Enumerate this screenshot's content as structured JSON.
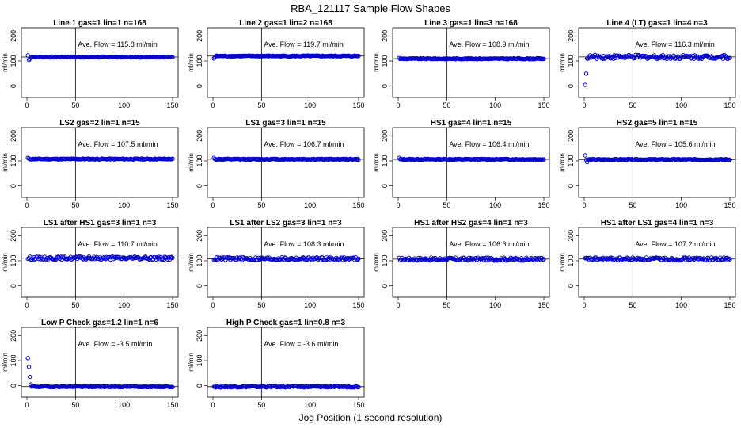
{
  "figure": {
    "title": "RBA_121117  Sample Flow Shapes",
    "xlabel": "Jog Position (1 second resolution)"
  },
  "chart_data": [
    {
      "type": "scatter",
      "title": "Line 1 gas=1 lin=1 n=168",
      "ylabel": "ml/min",
      "annotation": "Ave. Flow = 115.8  ml/min",
      "avg": 115.8,
      "xlim": [
        0,
        150
      ],
      "ylim": [
        0,
        200
      ],
      "xticks": [
        0,
        50,
        100,
        150
      ],
      "yticks": [
        0,
        100,
        200
      ],
      "vline": 50,
      "start": [
        122,
        104,
        108
      ],
      "noise": 2,
      "color": "#0000cc"
    },
    {
      "type": "scatter",
      "title": "Line 2 gas=1 lin=2 n=168",
      "ylabel": "ml/min",
      "annotation": "Ave. Flow = 119.7  ml/min",
      "avg": 119.7,
      "xlim": [
        0,
        150
      ],
      "ylim": [
        0,
        200
      ],
      "xticks": [
        0,
        50,
        100,
        150
      ],
      "yticks": [
        0,
        100,
        200
      ],
      "vline": 50,
      "start": [
        110,
        115
      ],
      "noise": 2,
      "color": "#0000cc"
    },
    {
      "type": "scatter",
      "title": "Line 3 gas=1 lin=3 n=168",
      "ylabel": "ml/min",
      "annotation": "Ave. Flow = 108.9  ml/min",
      "avg": 108.9,
      "xlim": [
        0,
        150
      ],
      "ylim": [
        0,
        200
      ],
      "xticks": [
        0,
        50,
        100,
        150
      ],
      "yticks": [
        0,
        100,
        200
      ],
      "vline": 50,
      "start": [
        112
      ],
      "noise": 2,
      "color": "#0000cc"
    },
    {
      "type": "scatter",
      "title": "Line 4 (LT) gas=1 lin=4 n=3",
      "ylabel": "ml/min",
      "annotation": "Ave. Flow = 116.3  ml/min",
      "avg": 116.3,
      "xlim": [
        0,
        150
      ],
      "ylim": [
        0,
        200
      ],
      "xticks": [
        0,
        50,
        100,
        150
      ],
      "yticks": [
        0,
        100,
        200
      ],
      "vline": 50,
      "start": [
        5,
        50,
        110
      ],
      "noise": 8,
      "color": "#0000cc"
    },
    {
      "type": "scatter",
      "title": "LS2 gas=2 lin=1 n=15",
      "ylabel": "ml/min",
      "annotation": "Ave. Flow = 107.5  ml/min",
      "avg": 107.5,
      "xlim": [
        0,
        150
      ],
      "ylim": [
        0,
        200
      ],
      "xticks": [
        0,
        50,
        100,
        150
      ],
      "yticks": [
        0,
        100,
        200
      ],
      "vline": 50,
      "start": [
        112
      ],
      "noise": 2,
      "color": "#0000cc"
    },
    {
      "type": "scatter",
      "title": "LS1 gas=3 lin=1 n=15",
      "ylabel": "ml/min",
      "annotation": "Ave. Flow = 106.7  ml/min",
      "avg": 106.7,
      "xlim": [
        0,
        150
      ],
      "ylim": [
        0,
        200
      ],
      "xticks": [
        0,
        50,
        100,
        150
      ],
      "yticks": [
        0,
        100,
        200
      ],
      "vline": 50,
      "start": [
        112
      ],
      "noise": 2,
      "color": "#0000cc"
    },
    {
      "type": "scatter",
      "title": "HS1 gas=4 lin=1 n=15",
      "ylabel": "ml/min",
      "annotation": "Ave. Flow = 106.4  ml/min",
      "avg": 106.4,
      "xlim": [
        0,
        150
      ],
      "ylim": [
        0,
        200
      ],
      "xticks": [
        0,
        50,
        100,
        150
      ],
      "yticks": [
        0,
        100,
        200
      ],
      "vline": 50,
      "start": [
        112
      ],
      "noise": 2,
      "color": "#0000cc"
    },
    {
      "type": "scatter",
      "title": "HS2 gas=5 lin=1 n=15",
      "ylabel": "ml/min",
      "annotation": "Ave. Flow = 105.6  ml/min",
      "avg": 105.6,
      "xlim": [
        0,
        150
      ],
      "ylim": [
        0,
        200
      ],
      "xticks": [
        0,
        50,
        100,
        150
      ],
      "yticks": [
        0,
        100,
        200
      ],
      "vline": 50,
      "start": [
        122,
        104,
        95
      ],
      "noise": 2,
      "color": "#0000cc"
    },
    {
      "type": "scatter",
      "title": "LS1 after HS1 gas=3 lin=1 n=3",
      "ylabel": "ml/min",
      "annotation": "Ave. Flow = 110.7  ml/min",
      "avg": 110.7,
      "xlim": [
        0,
        150
      ],
      "ylim": [
        0,
        200
      ],
      "xticks": [
        0,
        50,
        100,
        150
      ],
      "yticks": [
        0,
        100,
        200
      ],
      "vline": 50,
      "start": [],
      "noise": 6,
      "color": "#0000cc"
    },
    {
      "type": "scatter",
      "title": "LS1 after LS2 gas=3 lin=1 n=3",
      "ylabel": "ml/min",
      "annotation": "Ave. Flow = 108.3  ml/min",
      "avg": 108.3,
      "xlim": [
        0,
        150
      ],
      "ylim": [
        0,
        200
      ],
      "xticks": [
        0,
        50,
        100,
        150
      ],
      "yticks": [
        0,
        100,
        200
      ],
      "vline": 50,
      "start": [],
      "noise": 6,
      "color": "#0000cc"
    },
    {
      "type": "scatter",
      "title": "HS1 after HS2 gas=4 lin=1 n=3",
      "ylabel": "ml/min",
      "annotation": "Ave. Flow = 106.6  ml/min",
      "avg": 106.6,
      "xlim": [
        0,
        150
      ],
      "ylim": [
        0,
        200
      ],
      "xticks": [
        0,
        50,
        100,
        150
      ],
      "yticks": [
        0,
        100,
        200
      ],
      "vline": 50,
      "start": [],
      "noise": 6,
      "color": "#0000cc"
    },
    {
      "type": "scatter",
      "title": "HS1 after LS1 gas=4 lin=1 n=3",
      "ylabel": "ml/min",
      "annotation": "Ave. Flow = 107.2  ml/min",
      "avg": 107.2,
      "xlim": [
        0,
        150
      ],
      "ylim": [
        0,
        200
      ],
      "xticks": [
        0,
        50,
        100,
        150
      ],
      "yticks": [
        0,
        100,
        200
      ],
      "vline": 50,
      "start": [],
      "noise": 6,
      "color": "#0000cc"
    },
    {
      "type": "scatter",
      "title": "Low P Check gas=1.2 lin=1 n=6",
      "ylabel": "ml/min",
      "annotation": "Ave. Flow =  -3.5  ml/min",
      "avg": -3.5,
      "xlim": [
        0,
        150
      ],
      "ylim": [
        0,
        200
      ],
      "xticks": [
        0,
        50,
        100,
        150
      ],
      "yticks": [
        0,
        100,
        200
      ],
      "vline": 50,
      "start": [
        110,
        75,
        35,
        5
      ],
      "noise": 2,
      "color": "#0000cc"
    },
    {
      "type": "scatter",
      "title": "High P Check gas=1 lin=0.8 n=3",
      "ylabel": "ml/min",
      "annotation": "Ave. Flow =  -3.6  ml/min",
      "avg": -3.6,
      "xlim": [
        0,
        150
      ],
      "ylim": [
        0,
        200
      ],
      "xticks": [
        0,
        50,
        100,
        150
      ],
      "yticks": [
        0,
        100,
        200
      ],
      "vline": 50,
      "start": [],
      "noise": 3,
      "color": "#0000cc"
    }
  ]
}
